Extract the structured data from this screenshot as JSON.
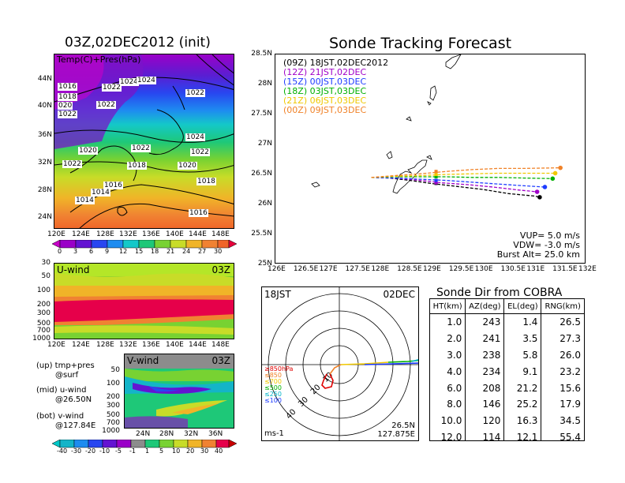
{
  "left_title": "03Z,02DEC2012 (init)",
  "main_title": "Sonde Tracking Forecast",
  "map_panel": {
    "label": "Temp(C)+Pres(hPa)",
    "lat_labels": [
      "44N",
      "40N",
      "36N",
      "32N",
      "28N",
      "24N"
    ],
    "lon_labels": [
      "120E",
      "124E",
      "128E",
      "132E",
      "136E",
      "140E",
      "144E",
      "148E"
    ],
    "isobars": [
      "1016",
      "1018",
      "1024",
      "1024",
      "1022",
      "020",
      "1022",
      "1022",
      "1022",
      "1022",
      "1020",
      "1022",
      "1024",
      "1018",
      "1020",
      "1022",
      "1016",
      "1018",
      "1014",
      "1014",
      "1016"
    ],
    "colorbar_ticks": [
      "0",
      "3",
      "6",
      "9",
      "12",
      "15",
      "18",
      "21",
      "24",
      "27",
      "30"
    ]
  },
  "uwind_panel": {
    "label": "U-wind",
    "time": "03Z",
    "pres_labels": [
      "30",
      "50",
      "100",
      "200",
      "300",
      "500",
      "700",
      "1000"
    ],
    "lon_labels": [
      "120E",
      "124E",
      "128E",
      "132E",
      "136E",
      "140E",
      "144E",
      "148E"
    ]
  },
  "vwind_panel": {
    "label": "V-wind",
    "time": "03Z",
    "pres_labels": [
      "50",
      "100",
      "200",
      "300",
      "500",
      "700",
      "1000"
    ],
    "lat_labels": [
      "24N",
      "28N",
      "32N",
      "36N"
    ],
    "colorbar_ticks": [
      "-40",
      "-30",
      "-20",
      "-10",
      "-5",
      "-1",
      "1",
      "5",
      "10",
      "20",
      "30",
      "40"
    ]
  },
  "notes": {
    "up": "(up) tmp+pres",
    "up2": "@surf",
    "mid": "(mid) u-wind",
    "mid2": "@26.50N",
    "bot": "(bot) v-wind",
    "bot2": "@127.84E"
  },
  "track_panel": {
    "lat_labels": [
      "28.5N",
      "28N",
      "27.5N",
      "27N",
      "26.5N",
      "26N",
      "25.5N",
      "25N"
    ],
    "lon_labels": [
      "126E",
      "126.5E",
      "127E",
      "127.5E",
      "128E",
      "128.5E",
      "129E",
      "129.5E",
      "130E",
      "130.5E",
      "131E",
      "131.5E",
      "132E"
    ],
    "legend": [
      {
        "text": "(09Z) 18JST,02DEC2012",
        "color": "#000000"
      },
      {
        "text": "(12Z) 21JST,02DEC",
        "color": "#a000c8"
      },
      {
        "text": "(15Z) 00JST,03DEC",
        "color": "#1e3cff"
      },
      {
        "text": "(18Z) 03JST,03DEC",
        "color": "#00b000"
      },
      {
        "text": "(21Z) 06JST,03DEC",
        "color": "#f0c800"
      },
      {
        "text": "(00Z) 09JST,03DEC",
        "color": "#f08228"
      }
    ],
    "params": [
      "VUP= 5.0 m/s",
      "VDW= -3.0 m/s",
      "Burst Alt= 25.0 km"
    ]
  },
  "polar_panel": {
    "time": "18JST",
    "date": "02DEC",
    "ring_labels": [
      "10",
      "20",
      "30",
      "40"
    ],
    "level_legend": [
      "≥850hPa",
      "≤850",
      "≤700",
      "≤500",
      "≤250",
      "≤100"
    ],
    "level_colors": [
      "#e00000",
      "#f08228",
      "#f0c800",
      "#00b000",
      "#00b4c8",
      "#1e3cff"
    ],
    "pos1": "26.5N",
    "pos2": "127.875E",
    "unit": "ms-1"
  },
  "sonde_table": {
    "title": "Sonde Dir from COBRA",
    "headers": [
      "HT(km)",
      "AZ(deg)",
      "EL(deg)",
      "RNG(km)"
    ],
    "rows": [
      [
        "1.0",
        "243",
        "1.4",
        "26.5"
      ],
      [
        "2.0",
        "241",
        "3.5",
        "27.3"
      ],
      [
        "3.0",
        "238",
        "5.8",
        "26.0"
      ],
      [
        "4.0",
        "234",
        "9.1",
        "23.2"
      ],
      [
        "6.0",
        "208",
        "21.2",
        "15.6"
      ],
      [
        "8.0",
        "146",
        "25.2",
        "17.9"
      ],
      [
        "10.0",
        "120",
        "16.3",
        "34.5"
      ],
      [
        "12.0",
        "114",
        "12.1",
        "55.4"
      ]
    ]
  },
  "chart_data": [
    {
      "type": "line",
      "title": "Sonde Tracking Forecast",
      "xlim": [
        126,
        132
      ],
      "ylim": [
        25,
        28.5
      ],
      "series": [
        {
          "name": "(09Z) 18JST,02DEC2012",
          "color": "#000000",
          "x": [
            127.85,
            128.2,
            128.6,
            129.0,
            129.5,
            130.0,
            130.5,
            131.0,
            131.1
          ],
          "y": [
            26.45,
            26.44,
            26.4,
            26.35,
            26.3,
            26.25,
            26.18,
            26.14,
            26.12
          ]
        },
        {
          "name": "(12Z) 21JST,02DEC",
          "color": "#a000c8",
          "x": [
            127.85,
            128.3,
            128.8,
            129.2,
            129.7,
            130.2,
            130.7,
            131.05
          ],
          "y": [
            26.45,
            26.44,
            26.4,
            26.36,
            26.33,
            26.29,
            26.24,
            26.21
          ]
        },
        {
          "name": "(15Z) 00JST,03DEC",
          "color": "#1e3cff",
          "x": [
            127.85,
            128.3,
            128.8,
            129.3,
            129.8,
            130.3,
            130.8,
            131.2
          ],
          "y": [
            26.45,
            26.44,
            26.42,
            26.4,
            26.37,
            26.34,
            26.31,
            26.29
          ]
        },
        {
          "name": "(18Z) 03JST,03DEC",
          "color": "#00b000",
          "x": [
            127.85,
            128.3,
            128.8,
            129.3,
            129.8,
            130.3,
            130.8,
            131.35
          ],
          "y": [
            26.45,
            26.46,
            26.46,
            26.46,
            26.45,
            26.45,
            26.44,
            26.43
          ]
        },
        {
          "name": "(21Z) 06JST,03DEC",
          "color": "#f0c800",
          "x": [
            127.85,
            128.3,
            128.8,
            129.3,
            129.8,
            130.3,
            130.8,
            131.4
          ],
          "y": [
            26.45,
            26.47,
            26.48,
            26.5,
            26.51,
            26.52,
            26.52,
            26.52
          ]
        },
        {
          "name": "(00Z) 09JST,03DEC",
          "color": "#f08228",
          "x": [
            127.85,
            128.3,
            128.8,
            129.3,
            129.8,
            130.3,
            130.8,
            131.5
          ],
          "y": [
            26.45,
            26.48,
            26.51,
            26.55,
            26.58,
            26.6,
            26.6,
            26.61
          ]
        }
      ]
    }
  ]
}
